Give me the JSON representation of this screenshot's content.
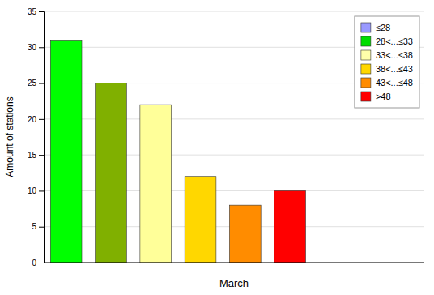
{
  "chart_data": {
    "type": "bar",
    "title": "",
    "xlabel": "March",
    "ylabel": "Amount of stations",
    "categories": [
      null,
      null,
      null,
      null,
      null,
      null
    ],
    "values": [
      31,
      25,
      22,
      12,
      8,
      10
    ],
    "colors": [
      "#00ff00",
      "#80b000",
      "#ffff99",
      "#ffd700",
      "#ff8c00",
      "#ff0000"
    ],
    "legend_entries": [
      {
        "name": "≤28",
        "color": "#9999ff"
      },
      {
        "name": "28<...≤33",
        "color": "#00dd00"
      },
      {
        "name": "33<...≤38",
        "color": "#ffffaa"
      },
      {
        "name": "38<...≤43",
        "color": "#ffd700"
      },
      {
        "name": "43<...≤48",
        "color": "#ff8c00"
      },
      {
        "name": ">48",
        "color": "#ff0000"
      }
    ],
    "legend": "upper right",
    "ylim": [
      0,
      35
    ],
    "yticks": [
      0,
      5,
      10,
      15,
      20,
      25,
      30,
      35
    ],
    "grid": true,
    "tick_labels": "y"
  }
}
